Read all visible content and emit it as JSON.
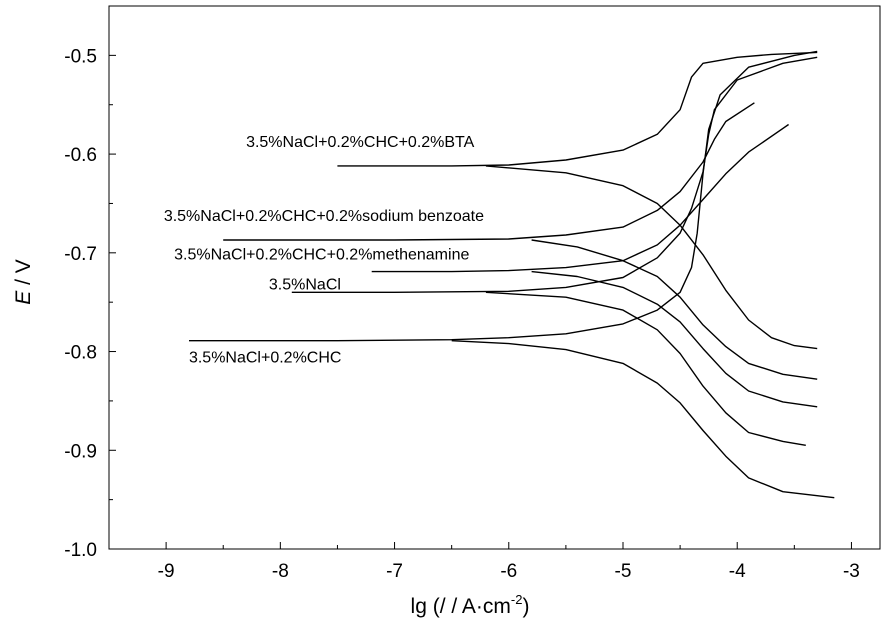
{
  "chart_data": {
    "type": "line",
    "title": "",
    "xlabel": "lg (/ / A·cm",
    "xlabel_sup": "-2",
    "xlabel_close": ")",
    "ylabel_italic": "E",
    "ylabel_rest": " / V",
    "xlim": [
      -9.5,
      -2.75
    ],
    "ylim": [
      -1.0,
      -0.45
    ],
    "x_ticks": [
      -9,
      -8,
      -7,
      -6,
      -5,
      -4,
      -3
    ],
    "x_tick_labels": [
      "-9",
      "-8",
      "-7",
      "-6",
      "-5",
      "-4",
      "-3"
    ],
    "y_ticks": [
      -1.0,
      -0.9,
      -0.8,
      -0.7,
      -0.6,
      -0.5
    ],
    "y_tick_labels": [
      "-1.0",
      "-0.9",
      "-0.8",
      "-0.7",
      "-0.6",
      "-0.5"
    ],
    "grid": false,
    "line_color": "#000000",
    "series": [
      {
        "name": "3.5%NaCl+0.2%CHC+0.2%BTA",
        "anodic": [
          [
            -7.5,
            -0.612
          ],
          [
            -6.5,
            -0.612
          ],
          [
            -6.0,
            -0.611
          ],
          [
            -5.5,
            -0.606
          ],
          [
            -5.0,
            -0.596
          ],
          [
            -4.7,
            -0.58
          ],
          [
            -4.5,
            -0.555
          ],
          [
            -4.4,
            -0.522
          ],
          [
            -4.3,
            -0.508
          ],
          [
            -4.0,
            -0.502
          ],
          [
            -3.7,
            -0.499
          ],
          [
            -3.3,
            -0.497
          ]
        ],
        "cathodic": [
          [
            -6.2,
            -0.612
          ],
          [
            -5.5,
            -0.619
          ],
          [
            -5.0,
            -0.632
          ],
          [
            -4.7,
            -0.65
          ],
          [
            -4.5,
            -0.672
          ],
          [
            -4.3,
            -0.702
          ],
          [
            -4.1,
            -0.738
          ],
          [
            -3.9,
            -0.768
          ],
          [
            -3.7,
            -0.786
          ],
          [
            -3.5,
            -0.794
          ],
          [
            -3.3,
            -0.797
          ]
        ]
      },
      {
        "name": "3.5%NaCl+0.2%CHC+0.2%sodium benzoate",
        "anodic": [
          [
            -8.5,
            -0.687
          ],
          [
            -7.0,
            -0.687
          ],
          [
            -6.0,
            -0.686
          ],
          [
            -5.5,
            -0.682
          ],
          [
            -5.0,
            -0.674
          ],
          [
            -4.7,
            -0.657
          ],
          [
            -4.5,
            -0.638
          ],
          [
            -4.3,
            -0.608
          ],
          [
            -4.2,
            -0.585
          ],
          [
            -4.1,
            -0.567
          ],
          [
            -3.85,
            -0.548
          ]
        ],
        "cathodic": [
          [
            -5.8,
            -0.687
          ],
          [
            -5.4,
            -0.694
          ],
          [
            -5.0,
            -0.708
          ],
          [
            -4.7,
            -0.724
          ],
          [
            -4.5,
            -0.745
          ],
          [
            -4.3,
            -0.773
          ],
          [
            -4.1,
            -0.795
          ],
          [
            -3.9,
            -0.812
          ],
          [
            -3.6,
            -0.823
          ],
          [
            -3.3,
            -0.828
          ]
        ]
      },
      {
        "name": "3.5%NaCl+0.2%CHC+0.2%methenamine",
        "anodic": [
          [
            -7.2,
            -0.719
          ],
          [
            -6.5,
            -0.719
          ],
          [
            -6.0,
            -0.718
          ],
          [
            -5.5,
            -0.715
          ],
          [
            -5.0,
            -0.708
          ],
          [
            -4.7,
            -0.692
          ],
          [
            -4.5,
            -0.672
          ],
          [
            -4.3,
            -0.646
          ],
          [
            -4.1,
            -0.62
          ],
          [
            -3.9,
            -0.598
          ],
          [
            -3.55,
            -0.57
          ]
        ],
        "cathodic": [
          [
            -5.8,
            -0.719
          ],
          [
            -5.4,
            -0.724
          ],
          [
            -5.0,
            -0.735
          ],
          [
            -4.7,
            -0.752
          ],
          [
            -4.5,
            -0.77
          ],
          [
            -4.3,
            -0.797
          ],
          [
            -4.1,
            -0.822
          ],
          [
            -3.9,
            -0.84
          ],
          [
            -3.6,
            -0.851
          ],
          [
            -3.3,
            -0.856
          ]
        ]
      },
      {
        "name": "3.5%NaCl",
        "anodic": [
          [
            -7.9,
            -0.74
          ],
          [
            -7.0,
            -0.74
          ],
          [
            -6.0,
            -0.739
          ],
          [
            -5.5,
            -0.735
          ],
          [
            -5.0,
            -0.725
          ],
          [
            -4.7,
            -0.705
          ],
          [
            -4.5,
            -0.68
          ],
          [
            -4.4,
            -0.655
          ],
          [
            -4.3,
            -0.618
          ],
          [
            -4.25,
            -0.58
          ],
          [
            -4.2,
            -0.555
          ],
          [
            -4.0,
            -0.525
          ],
          [
            -3.6,
            -0.508
          ],
          [
            -3.3,
            -0.502
          ]
        ],
        "cathodic": [
          [
            -6.2,
            -0.74
          ],
          [
            -5.5,
            -0.745
          ],
          [
            -5.0,
            -0.758
          ],
          [
            -4.7,
            -0.778
          ],
          [
            -4.5,
            -0.802
          ],
          [
            -4.3,
            -0.835
          ],
          [
            -4.1,
            -0.862
          ],
          [
            -3.9,
            -0.882
          ],
          [
            -3.6,
            -0.891
          ],
          [
            -3.4,
            -0.895
          ]
        ]
      },
      {
        "name": "3.5%NaCl+0.2%CHC",
        "anodic": [
          [
            -8.8,
            -0.789
          ],
          [
            -7.5,
            -0.789
          ],
          [
            -6.5,
            -0.788
          ],
          [
            -6.0,
            -0.786
          ],
          [
            -5.5,
            -0.782
          ],
          [
            -5.0,
            -0.772
          ],
          [
            -4.7,
            -0.758
          ],
          [
            -4.5,
            -0.74
          ],
          [
            -4.4,
            -0.715
          ],
          [
            -4.35,
            -0.68
          ],
          [
            -4.3,
            -0.62
          ],
          [
            -4.25,
            -0.575
          ],
          [
            -4.15,
            -0.54
          ],
          [
            -3.9,
            -0.512
          ],
          [
            -3.5,
            -0.5
          ],
          [
            -3.3,
            -0.496
          ]
        ],
        "cathodic": [
          [
            -6.5,
            -0.789
          ],
          [
            -6.0,
            -0.792
          ],
          [
            -5.5,
            -0.798
          ],
          [
            -5.0,
            -0.812
          ],
          [
            -4.7,
            -0.832
          ],
          [
            -4.5,
            -0.852
          ],
          [
            -4.3,
            -0.88
          ],
          [
            -4.1,
            -0.906
          ],
          [
            -3.9,
            -0.928
          ],
          [
            -3.6,
            -0.942
          ],
          [
            -3.15,
            -0.948
          ]
        ]
      }
    ],
    "annotations": [
      {
        "text": "3.5%NaCl+0.2%CHC+0.2%BTA",
        "x": -8.3,
        "y": -0.593
      },
      {
        "text": "3.5%NaCl+0.2%CHC+0.2%sodium benzoate",
        "x": -9.02,
        "y": -0.668
      },
      {
        "text": "3.5%NaCl+0.2%CHC+0.2%methenamine",
        "x": -8.93,
        "y": -0.707
      },
      {
        "text": "3.5%NaCl",
        "x": -8.1,
        "y": -0.737
      },
      {
        "text": "3.5%NaCl+0.2%CHC",
        "x": -8.8,
        "y": -0.811
      }
    ]
  }
}
